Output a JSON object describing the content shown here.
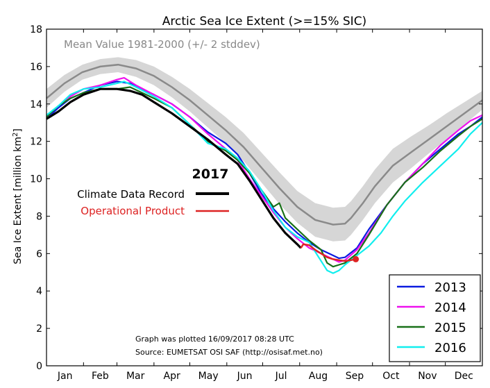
{
  "chart_data": {
    "type": "line",
    "title": "Arctic Sea Ice Extent (>=15% SIC)",
    "ylabel": "Sea Ice Extent [million km",
    "ylabel_sup": "2",
    "ylabel_end": "]",
    "xlabel": "",
    "ylim": [
      0,
      18
    ],
    "xlim": [
      0,
      365
    ],
    "yticks": [
      0,
      2,
      4,
      6,
      8,
      10,
      12,
      14,
      16,
      18
    ],
    "months": [
      "Jan",
      "Feb",
      "Mar",
      "Apr",
      "May",
      "Jun",
      "Jul",
      "Aug",
      "Sep",
      "Oct",
      "Nov",
      "Dec"
    ],
    "month_ticks": [
      0,
      31,
      59,
      90,
      120,
      151,
      181,
      212,
      243,
      273,
      304,
      334,
      365
    ],
    "mean_label": "Mean Value 1981-2000 (+/- 2 stddev)",
    "mean": {
      "x": [
        0,
        15,
        30,
        45,
        60,
        75,
        90,
        105,
        120,
        135,
        150,
        165,
        180,
        195,
        210,
        225,
        240,
        250,
        255,
        265,
        275,
        290,
        305,
        320,
        335,
        350,
        365
      ],
      "values": [
        14.3,
        15.1,
        15.7,
        16.0,
        16.1,
        15.9,
        15.5,
        14.9,
        14.2,
        13.4,
        12.6,
        11.7,
        10.6,
        9.5,
        8.5,
        7.8,
        7.55,
        7.6,
        7.9,
        8.7,
        9.6,
        10.7,
        11.4,
        12.1,
        12.8,
        13.5,
        14.2
      ],
      "band": [
        0.5,
        0.45,
        0.4,
        0.4,
        0.4,
        0.45,
        0.5,
        0.55,
        0.6,
        0.65,
        0.7,
        0.75,
        0.8,
        0.85,
        0.85,
        0.9,
        0.9,
        0.9,
        0.9,
        0.9,
        0.9,
        0.9,
        0.85,
        0.75,
        0.7,
        0.6,
        0.5
      ]
    },
    "series": [
      {
        "name": "2013",
        "color": "#0a1adf",
        "x": [
          0,
          10,
          20,
          31,
          45,
          59,
          70,
          80,
          90,
          105,
          120,
          135,
          150,
          160,
          170,
          180,
          190,
          200,
          210,
          220,
          230,
          240,
          245,
          250,
          260,
          270,
          285,
          300,
          315,
          330,
          345,
          355,
          365
        ],
        "values": [
          13.2,
          13.8,
          14.3,
          14.6,
          15.0,
          15.2,
          15.1,
          14.8,
          14.5,
          14.0,
          13.3,
          12.5,
          11.9,
          11.3,
          10.3,
          9.2,
          8.4,
          7.7,
          7.1,
          6.6,
          6.2,
          5.9,
          5.75,
          5.8,
          6.3,
          7.3,
          8.6,
          9.8,
          10.8,
          11.6,
          12.4,
          12.8,
          13.3
        ]
      },
      {
        "name": "2014",
        "color": "#ee11ee",
        "x": [
          0,
          10,
          20,
          31,
          45,
          59,
          65,
          75,
          90,
          105,
          120,
          135,
          150,
          160,
          170,
          180,
          190,
          200,
          210,
          220,
          230,
          240,
          245,
          250,
          260,
          270,
          285,
          300,
          315,
          330,
          345,
          355,
          365
        ],
        "values": [
          13.3,
          13.9,
          14.4,
          14.8,
          15.0,
          15.3,
          15.4,
          15.0,
          14.5,
          14.0,
          13.3,
          12.4,
          11.6,
          11.0,
          10.0,
          9.1,
          8.2,
          7.4,
          6.8,
          6.3,
          6.0,
          5.7,
          5.55,
          5.65,
          6.2,
          7.1,
          8.6,
          9.8,
          10.8,
          11.8,
          12.6,
          13.1,
          13.4
        ]
      },
      {
        "name": "2015",
        "color": "#187018",
        "x": [
          0,
          10,
          20,
          31,
          45,
          59,
          70,
          80,
          90,
          105,
          120,
          135,
          150,
          160,
          170,
          180,
          190,
          195,
          200,
          210,
          220,
          230,
          235,
          240,
          245,
          250,
          260,
          270,
          285,
          300,
          315,
          330,
          345,
          355,
          365
        ],
        "values": [
          13.3,
          13.9,
          14.3,
          14.6,
          14.8,
          14.8,
          14.9,
          14.6,
          14.3,
          13.8,
          12.9,
          12.0,
          11.5,
          11.0,
          10.3,
          9.4,
          8.5,
          8.7,
          7.9,
          7.3,
          6.7,
          6.2,
          5.5,
          5.3,
          5.4,
          5.5,
          6.0,
          7.0,
          8.6,
          9.8,
          10.6,
          11.5,
          12.3,
          12.8,
          13.2
        ]
      },
      {
        "name": "2016",
        "color": "#11eeee",
        "x": [
          0,
          10,
          20,
          31,
          45,
          59,
          65,
          75,
          90,
          105,
          120,
          135,
          150,
          160,
          170,
          180,
          190,
          200,
          210,
          220,
          230,
          235,
          240,
          245,
          250,
          260,
          270,
          280,
          290,
          300,
          315,
          330,
          345,
          355,
          365
        ],
        "values": [
          13.4,
          13.9,
          14.5,
          14.8,
          14.9,
          15.1,
          15.2,
          14.9,
          14.4,
          13.8,
          12.9,
          11.9,
          11.6,
          11.1,
          10.4,
          9.4,
          8.3,
          7.4,
          6.9,
          6.6,
          5.6,
          5.1,
          4.95,
          5.1,
          5.4,
          5.9,
          6.4,
          7.1,
          8.0,
          8.8,
          9.8,
          10.7,
          11.6,
          12.4,
          13.0
        ]
      }
    ],
    "record_2017": {
      "label": "2017",
      "cdr_label": "Climate Data Record",
      "op_label": "Operational Product",
      "cdr_color": "#000000",
      "op_color": "#dd2222",
      "cdr": {
        "x": [
          0,
          10,
          20,
          31,
          45,
          59,
          70,
          80,
          90,
          105,
          120,
          135,
          150,
          160,
          170,
          180,
          190,
          200,
          210,
          213
        ],
        "values": [
          13.2,
          13.6,
          14.1,
          14.5,
          14.8,
          14.8,
          14.7,
          14.5,
          14.1,
          13.5,
          12.8,
          12.1,
          11.3,
          10.8,
          9.9,
          8.9,
          7.9,
          7.1,
          6.5,
          6.3
        ]
      },
      "op": {
        "x": [
          213,
          215,
          220,
          225,
          230,
          235,
          240,
          245,
          250,
          255,
          259
        ],
        "values": [
          6.3,
          6.5,
          6.45,
          6.2,
          6.0,
          5.8,
          5.7,
          5.65,
          5.6,
          5.65,
          5.7
        ]
      },
      "last_point": {
        "x": 259,
        "y": 5.7
      }
    },
    "footnote_1": "Graph was plotted 16/09/2017 08:28 UTC",
    "footnote_2": "Source: EUMETSAT OSI SAF (http://osisaf.met.no)"
  }
}
